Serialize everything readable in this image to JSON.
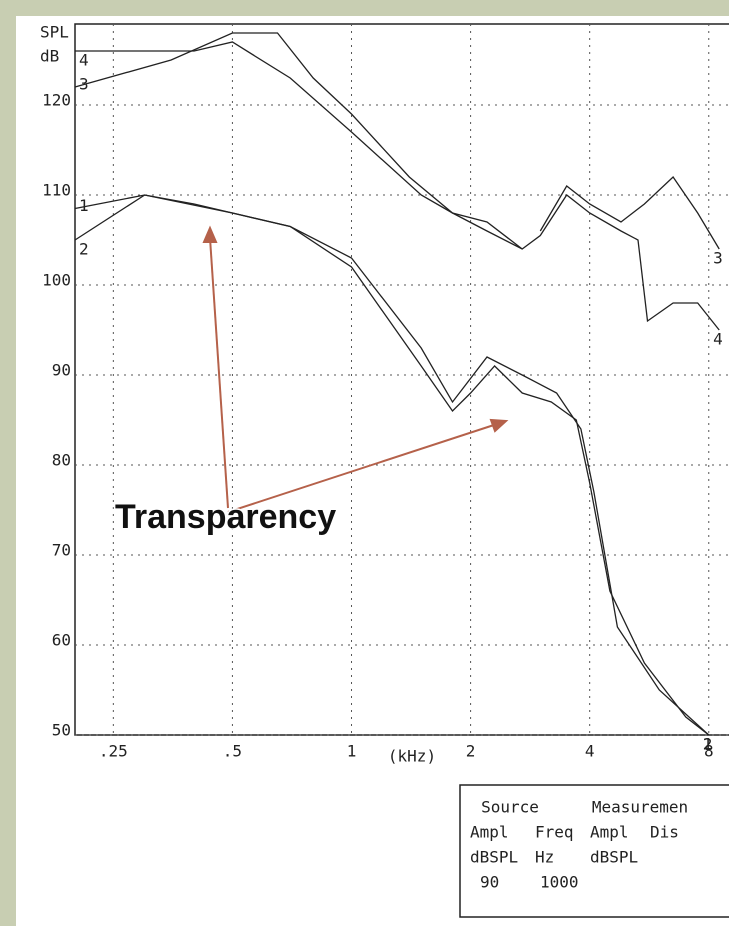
{
  "chart_data": {
    "type": "line",
    "ylabel": [
      "SPL",
      "dB"
    ],
    "xlabel": "(kHz)",
    "annotation": "Transparency",
    "xscale": "log",
    "xlim": [
      0.2,
      9
    ],
    "ylim": [
      50,
      129
    ],
    "xticks": [
      {
        "value": 0.25,
        "label": ".25"
      },
      {
        "value": 0.5,
        "label": ".5"
      },
      1,
      2,
      4,
      8
    ],
    "yticks": [
      50,
      60,
      70,
      80,
      90,
      100,
      110,
      120
    ],
    "grid": true,
    "series": [
      {
        "name": "1",
        "color": "#222222",
        "x": [
          0.2,
          0.3,
          0.5,
          0.7,
          1,
          1.5,
          1.8,
          2,
          2.3,
          2.7,
          3.2,
          3.7,
          4,
          4.5,
          5.5,
          7,
          8
        ],
        "values": [
          108.5,
          110,
          108,
          106.5,
          102,
          91,
          86,
          88,
          91,
          88,
          87,
          85,
          78,
          66,
          58,
          52,
          50
        ]
      },
      {
        "name": "2",
        "color": "#222222",
        "x": [
          0.2,
          0.3,
          0.4,
          0.5,
          0.7,
          1,
          1.5,
          1.8,
          2.2,
          2.7,
          3.3,
          3.8,
          4.1,
          4.7,
          6,
          8
        ],
        "values": [
          105,
          110,
          109,
          108,
          106.5,
          103,
          93,
          87,
          92,
          90,
          88,
          84,
          77,
          62,
          55,
          50
        ]
      },
      {
        "name": "3",
        "color": "#222222",
        "x": [
          0.2,
          0.35,
          0.5,
          0.65,
          0.8,
          1,
          1.4,
          1.8,
          2.2,
          2.7,
          2.85,
          3,
          3.5,
          4,
          4.8,
          5.5,
          6.5,
          7.5,
          8.5
        ],
        "values": [
          122,
          125,
          128,
          128,
          123,
          119,
          112,
          108,
          107,
          104,
          null,
          106,
          111,
          109,
          107,
          109,
          112,
          108,
          104
        ]
      },
      {
        "name": "4",
        "color": "#222222",
        "x": [
          0.2,
          0.4,
          0.5,
          0.7,
          1,
          1.5,
          1.8,
          2.2,
          2.7,
          3,
          3.5,
          4,
          4.8,
          5.3,
          5.6,
          6.5,
          7.5,
          8.5
        ],
        "values": [
          126,
          126,
          127,
          123,
          117,
          110,
          108,
          106,
          104,
          105.5,
          110,
          108,
          106,
          105,
          96,
          98,
          98,
          95
        ]
      }
    ],
    "info_box": {
      "rows": [
        [
          "Source",
          "Measuremen"
        ],
        [
          "Ampl",
          "Freq",
          "Ampl",
          "Dis"
        ],
        [
          "dBSPL",
          "Hz",
          "dBSPL"
        ],
        [
          "90",
          "1000"
        ]
      ]
    }
  }
}
